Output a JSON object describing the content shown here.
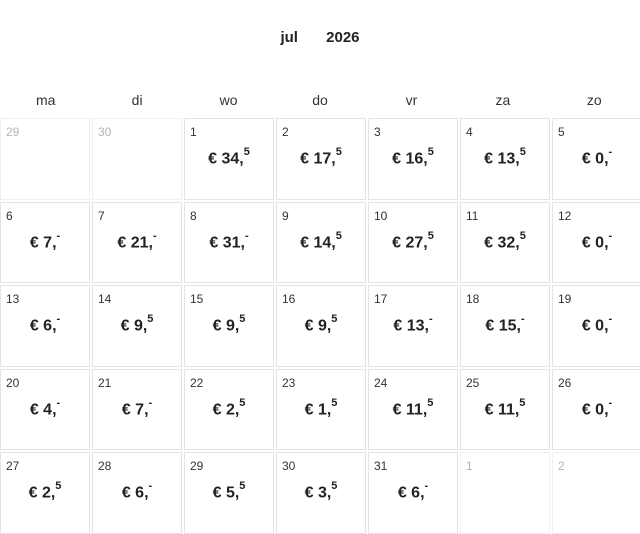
{
  "header": {
    "month": "jul",
    "year": "2026"
  },
  "weekdays": [
    "ma",
    "di",
    "wo",
    "do",
    "vr",
    "za",
    "zo"
  ],
  "currency": "€",
  "days": [
    {
      "day": "29",
      "out": true
    },
    {
      "day": "30",
      "out": true
    },
    {
      "day": "1",
      "main": "34,",
      "sup": "5"
    },
    {
      "day": "2",
      "main": "17,",
      "sup": "5"
    },
    {
      "day": "3",
      "main": "16,",
      "sup": "5"
    },
    {
      "day": "4",
      "main": "13,",
      "sup": "5"
    },
    {
      "day": "5",
      "main": "0,",
      "sup": "-"
    },
    {
      "day": "6",
      "main": "7,",
      "sup": "-"
    },
    {
      "day": "7",
      "main": "21,",
      "sup": "-"
    },
    {
      "day": "8",
      "main": "31,",
      "sup": "-"
    },
    {
      "day": "9",
      "main": "14,",
      "sup": "5"
    },
    {
      "day": "10",
      "main": "27,",
      "sup": "5"
    },
    {
      "day": "11",
      "main": "32,",
      "sup": "5"
    },
    {
      "day": "12",
      "main": "0,",
      "sup": "-"
    },
    {
      "day": "13",
      "main": "6,",
      "sup": "-"
    },
    {
      "day": "14",
      "main": "9,",
      "sup": "5"
    },
    {
      "day": "15",
      "main": "9,",
      "sup": "5"
    },
    {
      "day": "16",
      "main": "9,",
      "sup": "5"
    },
    {
      "day": "17",
      "main": "13,",
      "sup": "-"
    },
    {
      "day": "18",
      "main": "15,",
      "sup": "-"
    },
    {
      "day": "19",
      "main": "0,",
      "sup": "-"
    },
    {
      "day": "20",
      "main": "4,",
      "sup": "-"
    },
    {
      "day": "21",
      "main": "7,",
      "sup": "-"
    },
    {
      "day": "22",
      "main": "2,",
      "sup": "5"
    },
    {
      "day": "23",
      "main": "1,",
      "sup": "5"
    },
    {
      "day": "24",
      "main": "11,",
      "sup": "5"
    },
    {
      "day": "25",
      "main": "11,",
      "sup": "5"
    },
    {
      "day": "26",
      "main": "0,",
      "sup": "-"
    },
    {
      "day": "27",
      "main": "2,",
      "sup": "5"
    },
    {
      "day": "28",
      "main": "6,",
      "sup": "-"
    },
    {
      "day": "29",
      "main": "5,",
      "sup": "5"
    },
    {
      "day": "30",
      "main": "3,",
      "sup": "5"
    },
    {
      "day": "31",
      "main": "6,",
      "sup": "-"
    },
    {
      "day": "1",
      "out": true
    },
    {
      "day": "2",
      "out": true
    }
  ]
}
